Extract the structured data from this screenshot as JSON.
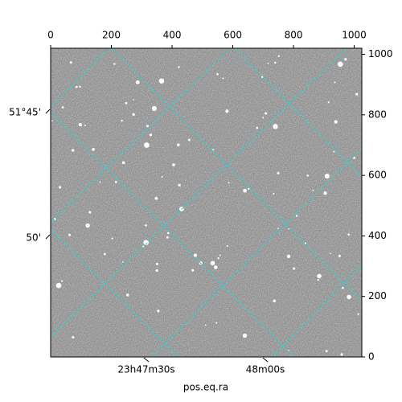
{
  "chart_data": {
    "type": "image",
    "xlabel": "pos.eq.ra",
    "xlim": [
      0,
      1025
    ],
    "xticks": [
      0,
      200,
      400,
      600,
      800,
      1000
    ],
    "ylim": [
      0,
      1020
    ],
    "yticks": [
      0,
      200,
      400,
      600,
      800,
      1000
    ],
    "ra_ticks": [
      "23h47m30s",
      "48m00s"
    ],
    "dec_ticks": [
      "51°45'",
      "50'"
    ],
    "grid_color": "#00e5e5"
  }
}
